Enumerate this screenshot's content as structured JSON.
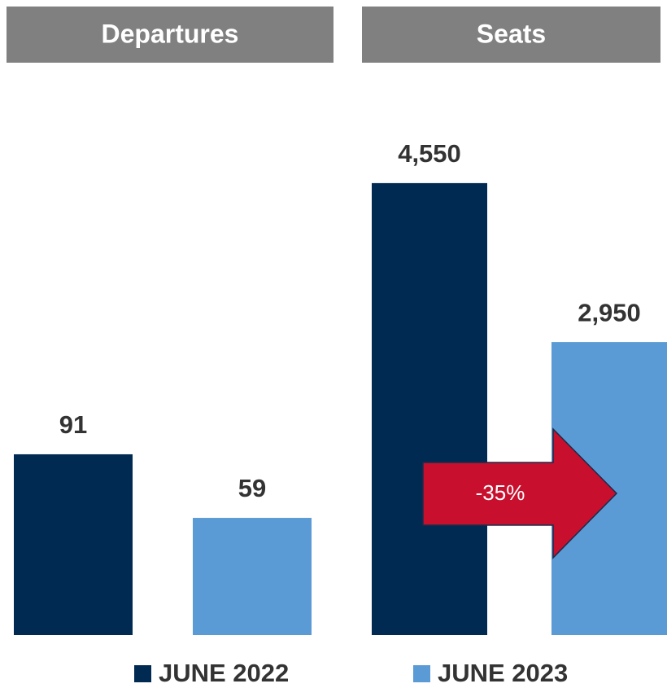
{
  "chart_data": [
    {
      "type": "bar",
      "title": "Departures",
      "values": [
        91,
        59
      ],
      "ylim": [
        0,
        250
      ]
    },
    {
      "type": "bar",
      "title": "Seats",
      "values": [
        4550,
        2950
      ],
      "value_labels": [
        "4,550",
        "2,950"
      ],
      "ylim": [
        0,
        5000
      ],
      "annotation": "-35%",
      "annotation_color": "#c8102e"
    }
  ],
  "legend": [
    {
      "name": "JUNE 2022",
      "color": "#002a52"
    },
    {
      "name": "JUNE 2023",
      "color": "#5b9bd5"
    }
  ]
}
